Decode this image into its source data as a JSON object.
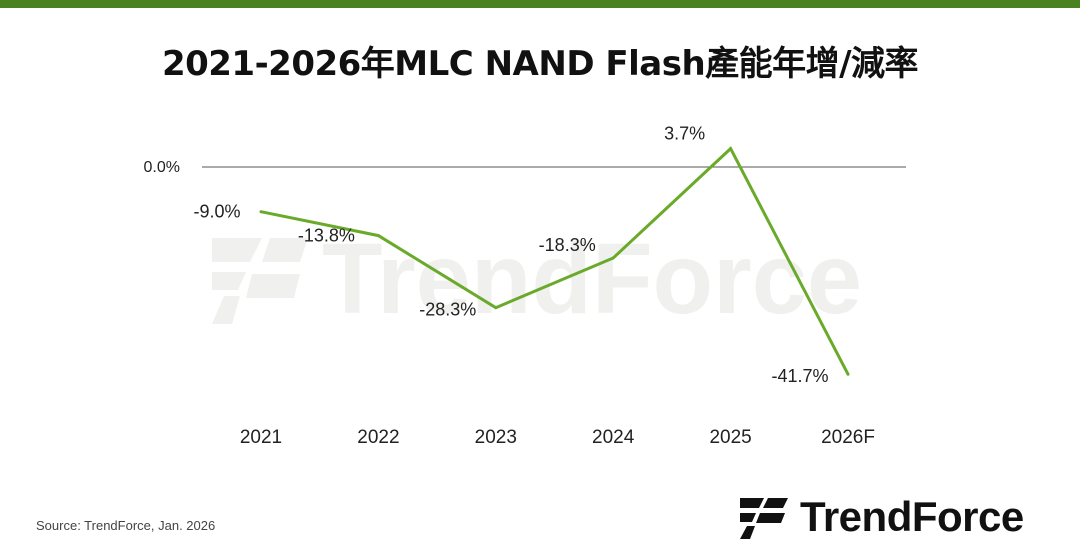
{
  "header": {
    "title": "2021-2026年MLC NAND Flash產能年增/減率"
  },
  "colors": {
    "accent": "#4b8220",
    "line": "#6aaa2a",
    "zero_line": "#555555",
    "watermark": "#f0f0ee"
  },
  "chart_data": {
    "type": "line",
    "title": "2021-2026年MLC NAND Flash產能年增/減率",
    "categories": [
      "2021",
      "2022",
      "2023",
      "2024",
      "2025",
      "2026F"
    ],
    "series": [
      {
        "values": [
          -9.0,
          -13.8,
          -28.3,
          -18.3,
          3.7,
          -41.7
        ]
      }
    ],
    "data_labels": [
      "-9.0%",
      "-13.8%",
      "-28.3%",
      "-18.3%",
      "3.7%",
      "-41.7%"
    ],
    "reference_line": {
      "value": 0.0,
      "label": "0.0%"
    },
    "ylim": [
      -45,
      5
    ],
    "grid": false,
    "legend": "none"
  },
  "footer": {
    "source": "Source: TrendForce, Jan. 2026",
    "brand": "TrendForce"
  },
  "watermark": {
    "text": "TrendForce"
  }
}
